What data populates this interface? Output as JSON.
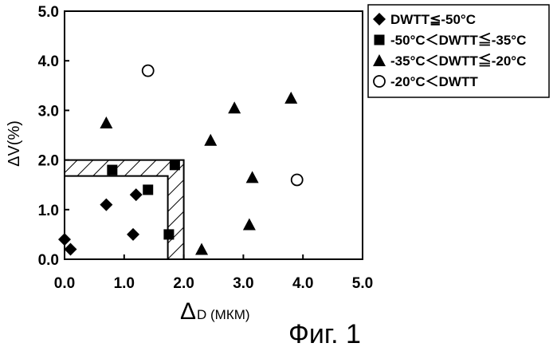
{
  "chart_data": {
    "type": "scatter",
    "title": "",
    "xlabel": "Δ",
    "xlabel_sub": "D (МКМ)",
    "ylabel": "ΔV(%)",
    "xlim": [
      0,
      5
    ],
    "ylim": [
      0,
      5
    ],
    "x_ticks": [
      "0.0",
      "1.0",
      "2.0",
      "3.0",
      "4.0",
      "5.0"
    ],
    "y_ticks": [
      "0.0",
      "1.0",
      "2.0",
      "3.0",
      "4.0",
      "5.0"
    ],
    "grid": false,
    "legend_position": "top-right",
    "hatched_region": {
      "x": [
        0,
        2
      ],
      "y": [
        0,
        2
      ]
    },
    "series": [
      {
        "name": "DWTT≦-50°C",
        "marker": "diamond",
        "points": [
          [
            0.0,
            0.4
          ],
          [
            0.1,
            0.2
          ],
          [
            0.7,
            1.1
          ],
          [
            1.15,
            0.5
          ],
          [
            1.2,
            1.3
          ]
        ]
      },
      {
        "name": "-50°C＜DWTT≦-35°C",
        "marker": "square",
        "points": [
          [
            0.8,
            1.8
          ],
          [
            1.4,
            1.4
          ],
          [
            1.85,
            1.9
          ],
          [
            1.75,
            0.5
          ]
        ]
      },
      {
        "name": "-35°C＜DWTT≦-20°C",
        "marker": "triangle",
        "points": [
          [
            0.7,
            2.75
          ],
          [
            2.45,
            2.4
          ],
          [
            2.85,
            3.05
          ],
          [
            3.15,
            1.65
          ],
          [
            3.8,
            3.25
          ],
          [
            2.3,
            0.2
          ],
          [
            3.1,
            0.7
          ]
        ]
      },
      {
        "name": "-20°C＜DWTT",
        "marker": "circle",
        "points": [
          [
            1.4,
            3.8
          ],
          [
            3.9,
            1.6
          ]
        ]
      }
    ]
  },
  "caption": "Фиг. 1"
}
